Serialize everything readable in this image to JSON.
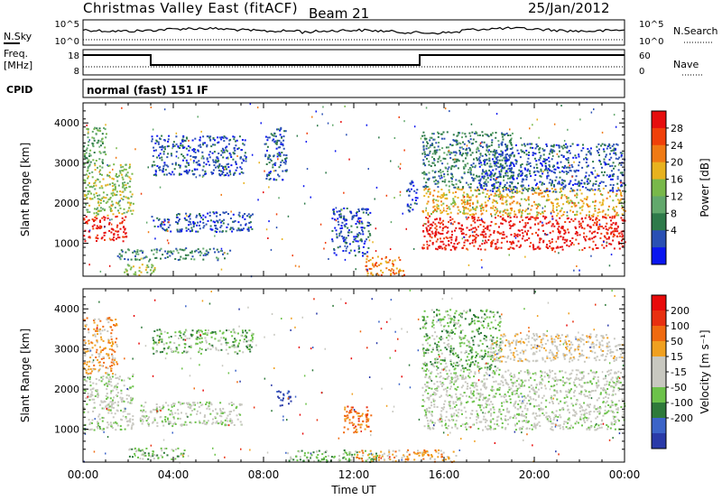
{
  "header": {
    "title": "Christmas Valley East (fitACF)",
    "beam": "Beam 21",
    "date": "25/Jan/2012"
  },
  "panels": {
    "nsky": {
      "label": "N.Sky",
      "ticks": [
        "10^5",
        "10^0"
      ],
      "right_label": "N.Search",
      "right_ticks": [
        "10^5",
        "10^0"
      ]
    },
    "freq": {
      "label": "Freq.",
      "unit": "[MHz]",
      "ticks": [
        "18",
        "8"
      ],
      "right_label": "Nave",
      "right_ticks": [
        "60",
        "0"
      ]
    },
    "cpid": {
      "label": "CPID",
      "value": "normal (fast) 151 IF"
    }
  },
  "colors": {
    "power": [
      "#0a16f0",
      "#2a50b4",
      "#2e7a4a",
      "#62a86c",
      "#78b84a",
      "#e8b21e",
      "#f07a14",
      "#f0400a",
      "#e60e0e"
    ],
    "velocity": [
      "#2a3aa8",
      "#3c64c8",
      "#2e7a3a",
      "#6cc24a",
      "#c8c8c0",
      "#c8c8c0",
      "#f0a020",
      "#f06a10",
      "#e83010",
      "#e80a0a"
    ]
  },
  "chart_data": [
    {
      "type": "heatmap",
      "name": "power",
      "xlabel": "",
      "ylabel": "Slant Range [km]",
      "xlim": [
        "00:00",
        "24:00"
      ],
      "ylim": [
        180,
        4500
      ],
      "y_ticks": [
        1000,
        2000,
        3000,
        4000
      ],
      "y_tick_labels": [
        "1000",
        "2000",
        "3000",
        "4000"
      ],
      "colorbar": {
        "label": "Power [dB]",
        "ticks": [
          "28",
          "24",
          "20",
          "16",
          "12",
          "8",
          "4"
        ],
        "levels": 9
      },
      "regions": [
        {
          "t0": 0.0,
          "t1": 1.9,
          "r0": 1050,
          "r1": 1700,
          "level": 8
        },
        {
          "t0": 0.0,
          "t1": 2.2,
          "r0": 1700,
          "r1": 3000,
          "level": 4
        },
        {
          "t0": 0.0,
          "t1": 1.0,
          "r0": 3000,
          "r1": 3900,
          "level": 3
        },
        {
          "t0": 3.0,
          "t1": 7.2,
          "r0": 2700,
          "r1": 3700,
          "level": 1
        },
        {
          "t0": 3.0,
          "t1": 7.5,
          "r0": 1300,
          "r1": 1800,
          "level": 1
        },
        {
          "t0": 1.5,
          "t1": 6.5,
          "r0": 600,
          "r1": 900,
          "level": 2
        },
        {
          "t0": 1.8,
          "t1": 3.2,
          "r0": 200,
          "r1": 500,
          "level": 4
        },
        {
          "t0": 8.0,
          "t1": 9.0,
          "r0": 2600,
          "r1": 3900,
          "level": 1
        },
        {
          "t0": 11.0,
          "t1": 12.7,
          "r0": 700,
          "r1": 1900,
          "level": 1
        },
        {
          "t0": 12.5,
          "t1": 14.2,
          "r0": 200,
          "r1": 700,
          "level": 6
        },
        {
          "t0": 14.3,
          "t1": 14.8,
          "r0": 1800,
          "r1": 2600,
          "level": 1
        },
        {
          "t0": 15.0,
          "t1": 24.0,
          "r0": 850,
          "r1": 1700,
          "level": 8
        },
        {
          "t0": 15.0,
          "t1": 24.0,
          "r0": 1700,
          "r1": 2400,
          "level": 5
        },
        {
          "t0": 15.0,
          "t1": 19.0,
          "r0": 2400,
          "r1": 3800,
          "level": 2
        },
        {
          "t0": 17.5,
          "t1": 24.0,
          "r0": 2300,
          "r1": 3500,
          "level": 1
        }
      ]
    },
    {
      "type": "heatmap",
      "name": "velocity",
      "xlabel": "Time UT",
      "ylabel": "Slant Range [km]",
      "xlim": [
        "00:00",
        "24:00"
      ],
      "x_ticks": [
        "00:00",
        "04:00",
        "08:00",
        "12:00",
        "16:00",
        "20:00",
        "00:00"
      ],
      "ylim": [
        180,
        4500
      ],
      "y_ticks": [
        1000,
        2000,
        3000,
        4000
      ],
      "y_tick_labels": [
        "1000",
        "2000",
        "3000",
        "4000"
      ],
      "colorbar": {
        "label": "Velocity [m s⁻¹]",
        "ticks": [
          "200",
          "100",
          "50",
          "15",
          "-15",
          "-50",
          "-100",
          "-200"
        ],
        "levels": 10
      },
      "regions": [
        {
          "t0": 0.0,
          "t1": 2.2,
          "r0": 1000,
          "r1": 2400,
          "level": 4
        },
        {
          "t0": 0.0,
          "t1": 1.5,
          "r0": 2400,
          "r1": 3800,
          "level": 6
        },
        {
          "t0": 3.0,
          "t1": 7.5,
          "r0": 2900,
          "r1": 3500,
          "level": 3
        },
        {
          "t0": 2.5,
          "t1": 7.0,
          "r0": 1100,
          "r1": 1700,
          "level": 4
        },
        {
          "t0": 2.0,
          "t1": 4.5,
          "r0": 250,
          "r1": 550,
          "level": 3
        },
        {
          "t0": 8.5,
          "t1": 9.2,
          "r0": 1600,
          "r1": 2000,
          "level": 0
        },
        {
          "t0": 11.5,
          "t1": 12.8,
          "r0": 900,
          "r1": 1600,
          "level": 7
        },
        {
          "t0": 9.0,
          "t1": 13.0,
          "r0": 200,
          "r1": 500,
          "level": 3
        },
        {
          "t0": 12.0,
          "t1": 16.5,
          "r0": 200,
          "r1": 500,
          "level": 6
        },
        {
          "t0": 15.0,
          "t1": 24.0,
          "r0": 1000,
          "r1": 2500,
          "level": 4
        },
        {
          "t0": 15.0,
          "t1": 18.5,
          "r0": 2500,
          "r1": 4000,
          "level": 3
        },
        {
          "t0": 18.0,
          "t1": 24.0,
          "r0": 2700,
          "r1": 3400,
          "level": 5
        }
      ]
    }
  ]
}
